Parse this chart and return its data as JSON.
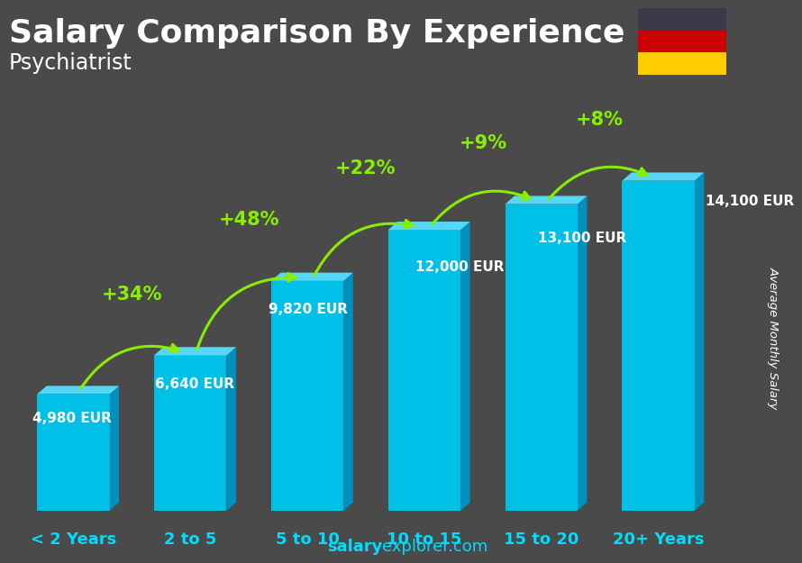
{
  "title": "Salary Comparison By Experience",
  "subtitle": "Psychiatrist",
  "categories": [
    "< 2 Years",
    "2 to 5",
    "5 to 10",
    "10 to 15",
    "15 to 20",
    "20+ Years"
  ],
  "values": [
    4980,
    6640,
    9820,
    12000,
    13100,
    14100
  ],
  "labels": [
    "4,980 EUR",
    "6,640 EUR",
    "9,820 EUR",
    "12,000 EUR",
    "13,100 EUR",
    "14,100 EUR"
  ],
  "pct_changes": [
    "+34%",
    "+48%",
    "+22%",
    "+9%",
    "+8%"
  ],
  "bar_front_color": "#00c0e8",
  "bar_side_color": "#0090bb",
  "bar_top_color": "#55d8f8",
  "bg_color": "#4a4a4a",
  "text_white": "#ffffff",
  "text_green": "#88ee00",
  "ylabel": "Average Monthly Salary",
  "watermark_bold": "salary",
  "watermark_regular": "explorer.com",
  "flag_black": "#3a3a4a",
  "flag_red": "#cc0000",
  "flag_gold": "#ffcc00",
  "title_fontsize": 26,
  "subtitle_fontsize": 17,
  "label_fontsize": 11,
  "pct_fontsize": 15,
  "cat_fontsize": 13,
  "watermark_fontsize": 13
}
